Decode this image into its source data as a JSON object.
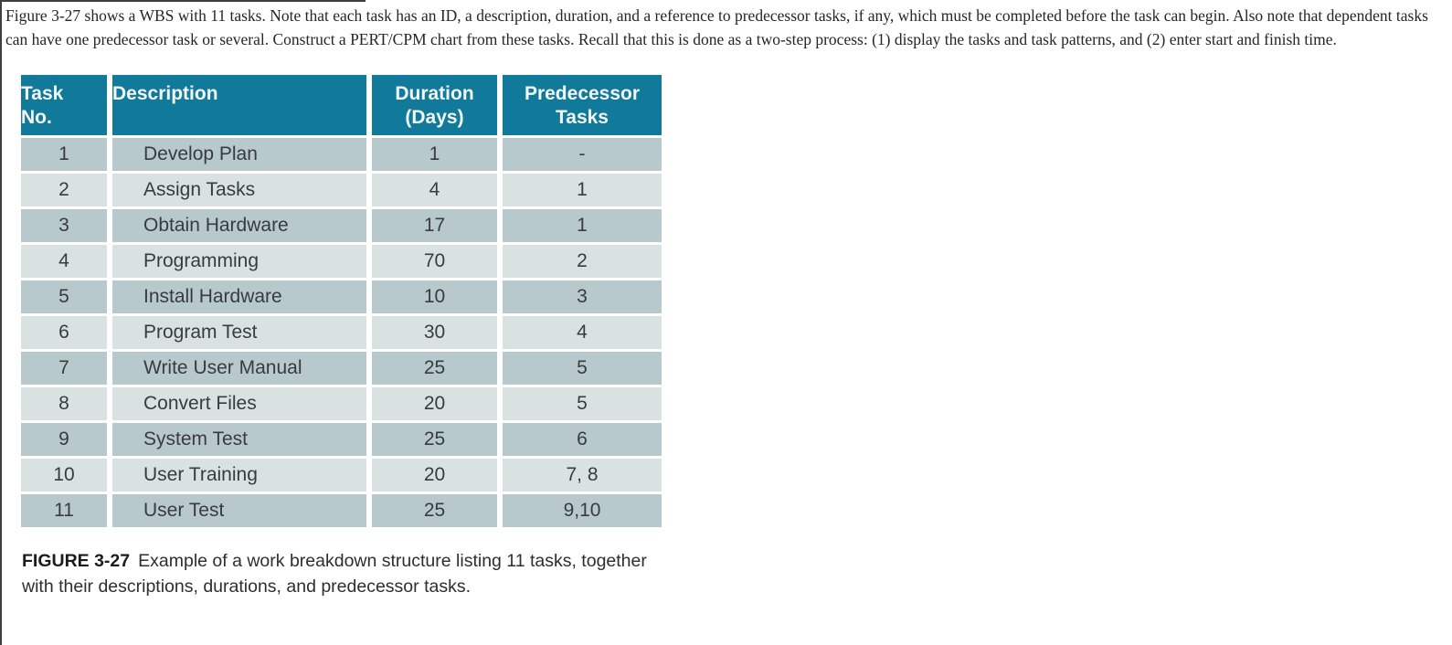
{
  "colors": {
    "table_header_bg": "#11799a",
    "row_dark": "#b7c9cc",
    "row_light": "#d9e2e1",
    "page_bg": "#ffffff"
  },
  "intro": {
    "text": "Figure 3-27 shows a WBS with 11 tasks. Note that each task has an ID, a description, duration, and a reference to predecessor tasks, if any, which must be completed before the task can begin. Also note that dependent tasks can have one predecessor task or several. Construct a PERT/CPM chart from these tasks. Recall that this is done as a two-step process: (1) display the tasks and task patterns, and (2) enter start and finish time."
  },
  "table": {
    "headers": [
      {
        "line1": "Task",
        "line2": "No."
      },
      {
        "line1": "Description",
        "line2": ""
      },
      {
        "line1": "Duration",
        "line2": "(Days)"
      },
      {
        "line1": "Predecessor",
        "line2": "Tasks"
      }
    ],
    "rows": [
      {
        "no": "1",
        "description": "Develop Plan",
        "duration": "1",
        "predecessors": "-"
      },
      {
        "no": "2",
        "description": "Assign Tasks",
        "duration": "4",
        "predecessors": "1"
      },
      {
        "no": "3",
        "description": "Obtain Hardware",
        "duration": "17",
        "predecessors": "1"
      },
      {
        "no": "4",
        "description": "Programming",
        "duration": "70",
        "predecessors": "2"
      },
      {
        "no": "5",
        "description": "Install Hardware",
        "duration": "10",
        "predecessors": "3"
      },
      {
        "no": "6",
        "description": "Program Test",
        "duration": "30",
        "predecessors": "4"
      },
      {
        "no": "7",
        "description": "Write User Manual",
        "duration": "25",
        "predecessors": "5"
      },
      {
        "no": "8",
        "description": "Convert Files",
        "duration": "20",
        "predecessors": "5"
      },
      {
        "no": "9",
        "description": "System Test",
        "duration": "25",
        "predecessors": "6"
      },
      {
        "no": "10",
        "description": "User Training",
        "duration": "20",
        "predecessors": "7, 8"
      },
      {
        "no": "11",
        "description": "User Test",
        "duration": "25",
        "predecessors": "9,10"
      }
    ]
  },
  "caption": {
    "label": "FIGURE 3-27",
    "text": "Example of a work breakdown structure listing 11 tasks, together with their descriptions, durations, and predecessor tasks."
  }
}
